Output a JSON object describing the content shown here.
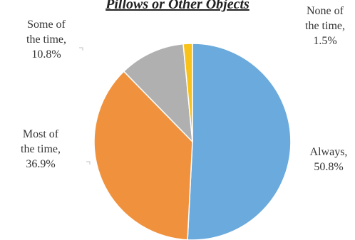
{
  "chart_data": {
    "type": "pie",
    "title": "Pillows or Other Objects",
    "start_angle_deg": 0,
    "direction": "clockwise",
    "slices": [
      {
        "key": "always",
        "category": "Always",
        "value": 50.8,
        "label_lines": [
          "Always,",
          "50.8%"
        ],
        "color": "#6baadc"
      },
      {
        "key": "most",
        "category": "Most  of the time",
        "value": 36.9,
        "label_lines": [
          "Most  of",
          "the time,",
          "36.9%"
        ],
        "color": "#f0923d"
      },
      {
        "key": "some",
        "category": "Some of the time",
        "value": 10.8,
        "label_lines": [
          "Some  of",
          "the time,",
          "10.8%"
        ],
        "color": "#b0b0b0"
      },
      {
        "key": "none",
        "category": "None of the time",
        "value": 1.5,
        "label_lines": [
          "None of",
          "the time,",
          "1.5%"
        ],
        "color": "#f9c21a"
      }
    ]
  }
}
